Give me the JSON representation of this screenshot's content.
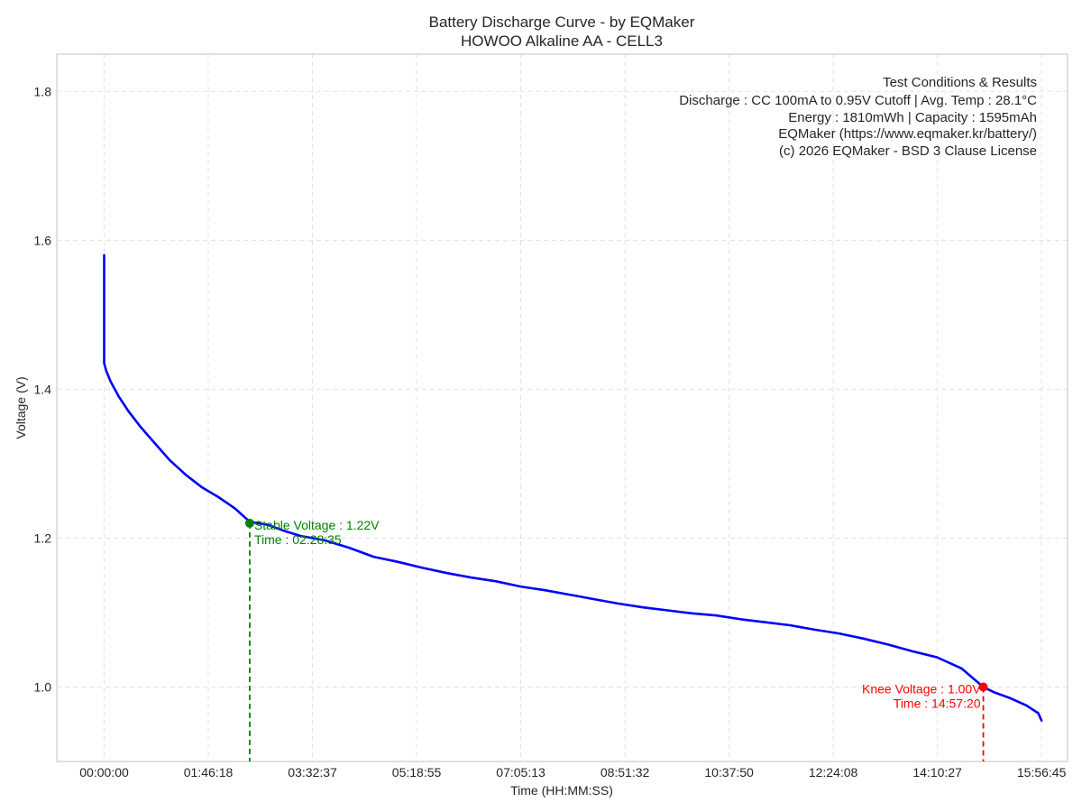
{
  "chart_data": {
    "type": "line",
    "title": "Battery Discharge Curve - by EQMaker",
    "subtitle": "HOWOO Alkaline AA - CELL3",
    "xlabel": "Time (HH:MM:SS)",
    "ylabel": "Voltage (V)",
    "xlim_seconds": [
      -2900,
      59000
    ],
    "ylim": [
      0.9,
      1.85
    ],
    "grid": true,
    "x_ticks": [
      {
        "seconds": 0,
        "label": "00:00:00"
      },
      {
        "seconds": 6378,
        "label": "01:46:18"
      },
      {
        "seconds": 12757,
        "label": "03:32:37"
      },
      {
        "seconds": 19135,
        "label": "05:18:55"
      },
      {
        "seconds": 25513,
        "label": "07:05:13"
      },
      {
        "seconds": 31892,
        "label": "08:51:32"
      },
      {
        "seconds": 38270,
        "label": "10:37:50"
      },
      {
        "seconds": 44648,
        "label": "12:24:08"
      },
      {
        "seconds": 51027,
        "label": "14:10:27"
      },
      {
        "seconds": 57405,
        "label": "15:56:45"
      }
    ],
    "y_ticks": [
      {
        "value": 1.0,
        "label": "1.0"
      },
      {
        "value": 1.2,
        "label": "1.2"
      },
      {
        "value": 1.4,
        "label": "1.4"
      },
      {
        "value": 1.6,
        "label": "1.6"
      },
      {
        "value": 1.8,
        "label": "1.8"
      }
    ],
    "series": [
      {
        "name": "Voltage",
        "color": "#0000ff",
        "x_seconds": [
          0,
          0,
          120,
          400,
          900,
          1500,
          2200,
          3000,
          4000,
          5000,
          6000,
          7000,
          8000,
          8915,
          10000,
          11000,
          12000,
          13500,
          15000,
          16500,
          18000,
          19500,
          21000,
          22500,
          24000,
          25500,
          27000,
          28500,
          30000,
          31500,
          33000,
          34500,
          36000,
          37500,
          39000,
          40500,
          42000,
          43500,
          45000,
          46500,
          48000,
          49500,
          51000,
          52500,
          53840,
          54500,
          55500,
          56500,
          57200,
          57405
        ],
        "values": [
          1.58,
          1.435,
          1.425,
          1.41,
          1.39,
          1.37,
          1.35,
          1.33,
          1.305,
          1.285,
          1.268,
          1.255,
          1.24,
          1.222,
          1.218,
          1.21,
          1.203,
          1.197,
          1.187,
          1.175,
          1.168,
          1.16,
          1.153,
          1.147,
          1.142,
          1.135,
          1.13,
          1.124,
          1.118,
          1.112,
          1.107,
          1.103,
          1.099,
          1.096,
          1.091,
          1.087,
          1.083,
          1.077,
          1.072,
          1.065,
          1.057,
          1.048,
          1.04,
          1.025,
          1.0,
          0.993,
          0.985,
          0.975,
          0.965,
          0.955
        ]
      }
    ],
    "annotations": [
      {
        "name": "stable",
        "x_seconds": 8915,
        "value": 1.22,
        "color": "#008000",
        "line1": "Stable Voltage : 1.22V",
        "line2": "Time : 02:28:35"
      },
      {
        "name": "knee",
        "x_seconds": 53840,
        "value": 1.0,
        "color": "#ff0000",
        "line1": "Knee Voltage : 1.00V",
        "line2": "Time : 14:57:20"
      }
    ],
    "info_box": {
      "placement": "top-right",
      "lines": [
        "Test Conditions & Results",
        "Discharge : CC 100mA to 0.95V Cutoff | Avg. Temp : 28.1°C",
        "Energy : 1810mWh | Capacity : 1595mAh",
        "EQMaker (https://www.eqmaker.kr/battery/)",
        "(c) 2026 EQMaker - BSD 3 Clause License"
      ]
    }
  }
}
